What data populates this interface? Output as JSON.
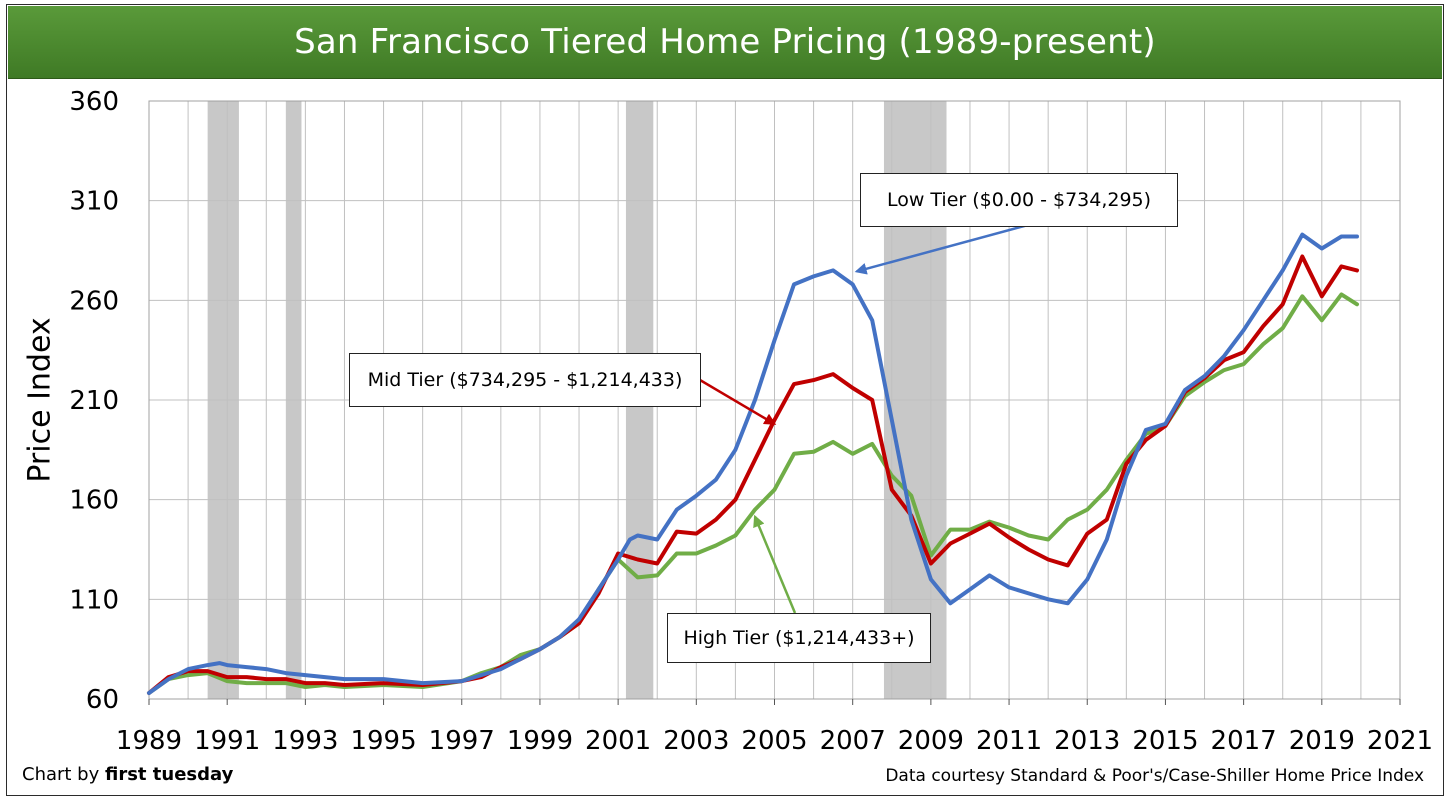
{
  "chart": {
    "title": "San Francisco Tiered Home Pricing (1989-present)",
    "credit_prefix": "Chart by ",
    "credit_brand": "first tuesday",
    "source": "Data courtesy Standard & Poor's/Case-Shiller Home Price Index",
    "colors": {
      "low": "#4472c4",
      "mid": "#c00000",
      "high": "#70ad47",
      "recession": "#c8c8c8",
      "grid": "#c0c0c0"
    }
  },
  "annotations": {
    "low": "Low Tier ($0.00 - $734,295)",
    "mid": "Mid Tier ($734,295 - $1,214,433)",
    "high": "High Tier ($1,214,433+)"
  },
  "chart_data": {
    "type": "line",
    "ylabel": "Price Index",
    "xlabel": "",
    "xlim": [
      1989,
      2021
    ],
    "ylim": [
      60,
      360
    ],
    "yticks": [
      60,
      110,
      160,
      210,
      260,
      310,
      360
    ],
    "xticks": [
      1989,
      1991,
      1993,
      1995,
      1997,
      1999,
      2001,
      2003,
      2005,
      2007,
      2009,
      2011,
      2013,
      2015,
      2017,
      2019,
      2021
    ],
    "grid": true,
    "recessions": [
      [
        1990.5,
        1991.3
      ],
      [
        1992.5,
        1992.9
      ],
      [
        2001.2,
        2001.9
      ],
      [
        2007.8,
        2009.4
      ]
    ],
    "series": [
      {
        "name": "Low Tier",
        "key": "low",
        "x": [
          1989.0,
          1989.5,
          1990.0,
          1990.5,
          1990.8,
          1991.0,
          1991.5,
          1992.0,
          1992.5,
          1993.0,
          1993.5,
          1994.0,
          1995.0,
          1996.0,
          1997.0,
          1997.5,
          1998.0,
          1998.5,
          1999.0,
          1999.5,
          2000.0,
          2000.5,
          2001.0,
          2001.3,
          2001.5,
          2002.0,
          2002.5,
          2003.0,
          2003.5,
          2004.0,
          2004.5,
          2005.0,
          2005.5,
          2006.0,
          2006.5,
          2007.0,
          2007.5,
          2008.0,
          2008.5,
          2009.0,
          2009.5,
          2010.0,
          2010.5,
          2011.0,
          2011.5,
          2012.0,
          2012.5,
          2013.0,
          2013.5,
          2014.0,
          2014.5,
          2015.0,
          2015.5,
          2016.0,
          2016.5,
          2017.0,
          2017.5,
          2018.0,
          2018.5,
          2019.0,
          2019.5,
          2019.9
        ],
        "y": [
          63,
          70,
          75,
          77,
          78,
          77,
          76,
          75,
          73,
          72,
          71,
          70,
          70,
          68,
          69,
          72,
          75,
          80,
          85,
          91,
          100,
          115,
          130,
          140,
          142,
          140,
          155,
          162,
          170,
          185,
          210,
          240,
          268,
          272,
          275,
          268,
          250,
          200,
          150,
          120,
          108,
          115,
          122,
          116,
          113,
          110,
          108,
          120,
          140,
          172,
          195,
          198,
          215,
          222,
          232,
          245,
          260,
          275,
          293,
          286,
          292,
          292
        ]
      },
      {
        "name": "Mid Tier",
        "key": "mid",
        "x": [
          1989.0,
          1989.5,
          1990.0,
          1990.5,
          1991.0,
          1991.5,
          1992.0,
          1992.5,
          1993.0,
          1993.5,
          1994.0,
          1995.0,
          1996.0,
          1997.0,
          1997.5,
          1998.0,
          1998.5,
          1999.0,
          1999.5,
          2000.0,
          2000.5,
          2001.0,
          2001.5,
          2002.0,
          2002.5,
          2003.0,
          2003.5,
          2004.0,
          2004.5,
          2005.0,
          2005.5,
          2006.0,
          2006.5,
          2007.0,
          2007.5,
          2008.0,
          2008.5,
          2009.0,
          2009.5,
          2010.0,
          2010.5,
          2011.0,
          2011.5,
          2012.0,
          2012.5,
          2013.0,
          2013.5,
          2014.0,
          2014.5,
          2015.0,
          2015.5,
          2016.0,
          2016.5,
          2017.0,
          2017.5,
          2018.0,
          2018.5,
          2019.0,
          2019.5,
          2019.9
        ],
        "y": [
          63,
          71,
          74,
          74,
          71,
          71,
          70,
          70,
          68,
          68,
          67,
          68,
          67,
          69,
          71,
          76,
          80,
          85,
          91,
          98,
          113,
          133,
          130,
          128,
          144,
          143,
          150,
          160,
          180,
          200,
          218,
          220,
          223,
          216,
          210,
          165,
          152,
          128,
          138,
          143,
          148,
          141,
          135,
          130,
          127,
          143,
          150,
          178,
          190,
          197,
          214,
          221,
          230,
          234,
          247,
          258,
          282,
          262,
          277,
          275
        ]
      },
      {
        "name": "High Tier",
        "key": "high",
        "x": [
          1989.0,
          1989.5,
          1990.0,
          1990.5,
          1991.0,
          1991.5,
          1992.0,
          1992.5,
          1993.0,
          1993.5,
          1994.0,
          1995.0,
          1996.0,
          1997.0,
          1997.5,
          1998.0,
          1998.5,
          1999.0,
          1999.5,
          2000.0,
          2000.5,
          2001.0,
          2001.5,
          2002.0,
          2002.5,
          2003.0,
          2003.5,
          2004.0,
          2004.5,
          2005.0,
          2005.5,
          2006.0,
          2006.5,
          2007.0,
          2007.5,
          2008.0,
          2008.5,
          2009.0,
          2009.5,
          2010.0,
          2010.5,
          2011.0,
          2011.5,
          2012.0,
          2012.5,
          2013.0,
          2013.5,
          2014.0,
          2014.5,
          2015.0,
          2015.5,
          2016.0,
          2016.5,
          2017.0,
          2017.5,
          2018.0,
          2018.5,
          2019.0,
          2019.5,
          2019.9
        ],
        "y": [
          63,
          70,
          72,
          73,
          69,
          68,
          68,
          68,
          66,
          67,
          66,
          67,
          66,
          69,
          73,
          76,
          82,
          85,
          91,
          98,
          115,
          130,
          121,
          122,
          133,
          133,
          137,
          142,
          155,
          165,
          183,
          184,
          189,
          183,
          188,
          172,
          162,
          132,
          145,
          145,
          149,
          146,
          142,
          140,
          150,
          155,
          165,
          180,
          193,
          197,
          212,
          219,
          225,
          228,
          238,
          246,
          262,
          250,
          263,
          258
        ]
      }
    ]
  }
}
